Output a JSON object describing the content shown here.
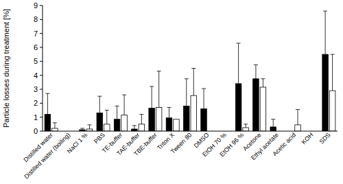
{
  "chart_data": {
    "type": "bar",
    "y_label": "Particle losses during treatment [%]",
    "categories": [
      "Distilled water",
      "Distilled water (boiling)",
      "NaCl 1 %",
      "PBS",
      "TE-buffer",
      "TAE-buffer",
      "TBE-buffer",
      "Triton X",
      "Tween 80",
      "DMSO",
      "EtOH 70 %",
      "EtOH 96 %",
      "Acetone",
      "Ethyl acetate",
      "Acetic acid",
      "KOH",
      "SDS"
    ],
    "series": [
      {
        "color": "#000000",
        "values": [
          1.2,
          0,
          0.1,
          1.3,
          0.85,
          0.15,
          1.65,
          0.95,
          1.8,
          1.6,
          0,
          3.4,
          3.75,
          0.3,
          0,
          0,
          5.5
        ],
        "errors": [
          1.5,
          0,
          0.1,
          1.2,
          0.95,
          0.25,
          1.55,
          0.75,
          1.95,
          1.45,
          0,
          2.9,
          1.0,
          0.55,
          0,
          0,
          3.1
        ]
      },
      {
        "color": "#ffffff",
        "values": [
          0.2,
          0,
          0.15,
          0.5,
          1.15,
          0.5,
          1.7,
          0.85,
          2.55,
          0,
          0,
          0.25,
          3.15,
          0,
          0.45,
          0,
          2.9
        ],
        "errors": [
          0.4,
          0,
          0.3,
          1.0,
          1.45,
          0.7,
          2.6,
          0,
          1.95,
          0,
          0,
          0.25,
          0.6,
          0,
          1.1,
          0,
          2.6
        ]
      }
    ],
    "ylim": [
      0,
      9
    ],
    "yticks": [
      0,
      1,
      2,
      3,
      4,
      5,
      6,
      7,
      8,
      9
    ],
    "grid": false
  }
}
